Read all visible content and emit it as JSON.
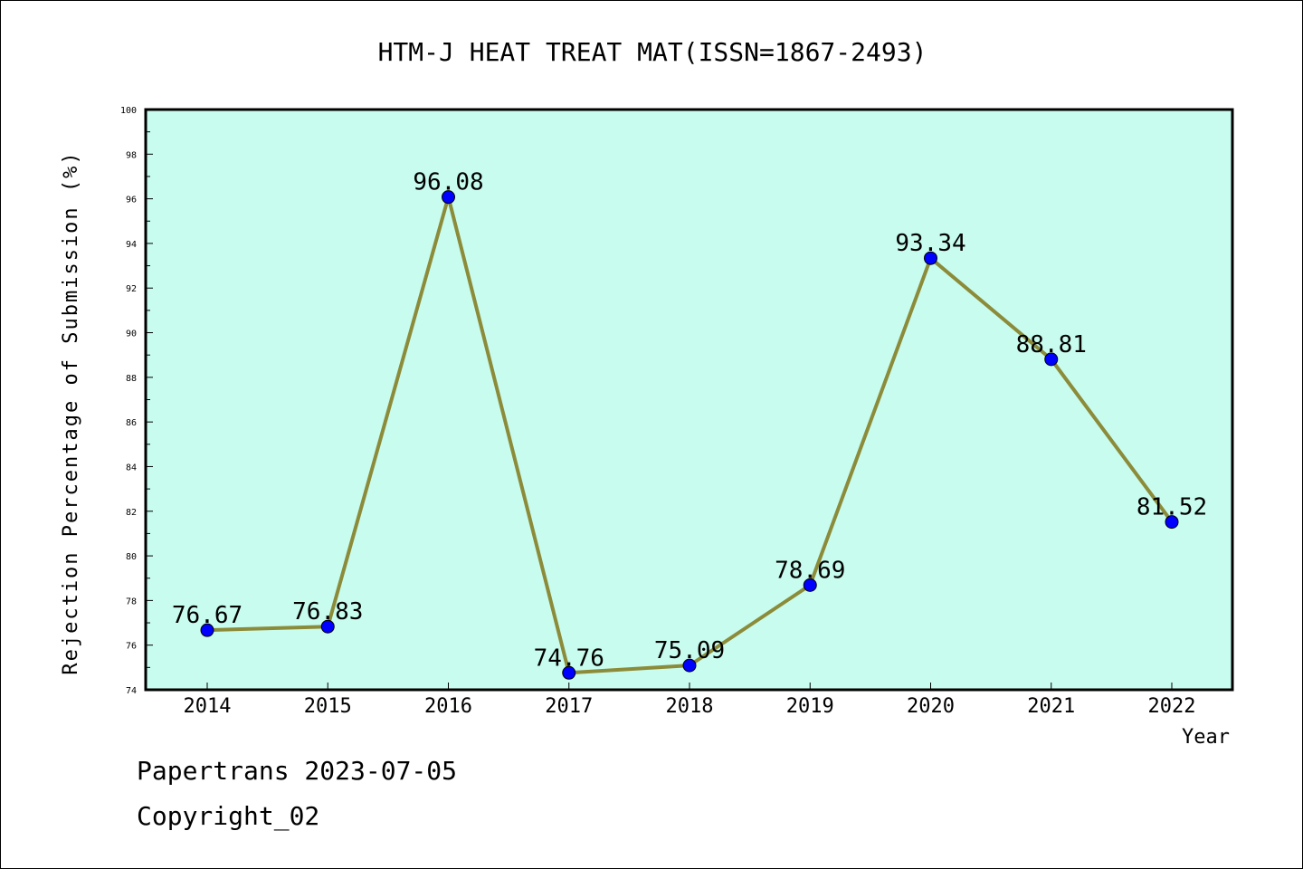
{
  "chart_data": {
    "type": "line",
    "title": "HTM-J HEAT TREAT MAT(ISSN=1867-2493)",
    "xlabel": "Year",
    "ylabel": "Rejection Percentage of Submission (%)",
    "categories": [
      "2014",
      "2015",
      "2016",
      "2017",
      "2018",
      "2019",
      "2020",
      "2021",
      "2022"
    ],
    "values": [
      76.67,
      76.83,
      96.08,
      74.76,
      75.09,
      78.69,
      93.34,
      88.81,
      81.52
    ],
    "data_labels": [
      "76.67",
      "76.83",
      "96.08",
      "74.76",
      "75.09",
      "78.69",
      "93.34",
      "88.81",
      "81.52"
    ],
    "ylim": [
      74,
      100
    ],
    "yticks": [
      "74",
      "76",
      "78",
      "80",
      "82",
      "84",
      "86",
      "88",
      "90",
      "92",
      "94",
      "96",
      "98",
      "100"
    ],
    "grid": false,
    "colors": {
      "plot_background": "#c8fcee",
      "line": "#8b8b3a",
      "marker": "#0000ff"
    }
  },
  "footer": {
    "line1": "Papertrans 2023-07-05",
    "line2": "Copyright_02"
  }
}
